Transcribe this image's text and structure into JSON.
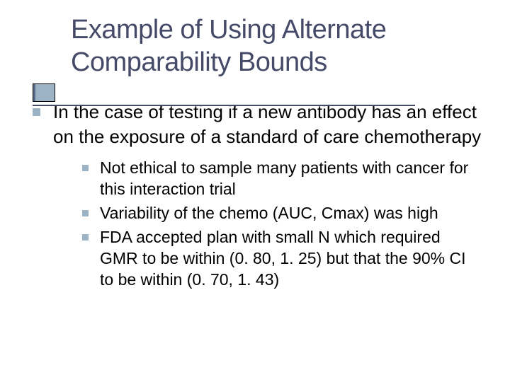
{
  "slide": {
    "title": "Example of Using Alternate Comparability Bounds",
    "title_color": "#454a68",
    "title_fontsize": 38,
    "decor_color": "#9cb3c5",
    "line_color": "#454a68",
    "background_color": "#ffffff",
    "bullets": [
      {
        "level": 1,
        "text": "In the case of testing if a new antibody has an effect on the exposure of a standard of care chemotherapy",
        "children": [
          {
            "level": 2,
            "text": "Not ethical to sample many patients with cancer for this interaction trial"
          },
          {
            "level": 2,
            "text": "Variability of the chemo (AUC, Cmax) was high"
          },
          {
            "level": 2,
            "text": "FDA accepted plan with small N which required GMR to be within (0. 80, 1. 25) but that the 90% CI to be within (0. 70, 1. 43)"
          }
        ]
      }
    ],
    "bullet_marker_color": "#9cb3c5",
    "body_text_color": "#000000",
    "l1_fontsize": 26,
    "l2_fontsize": 23
  }
}
